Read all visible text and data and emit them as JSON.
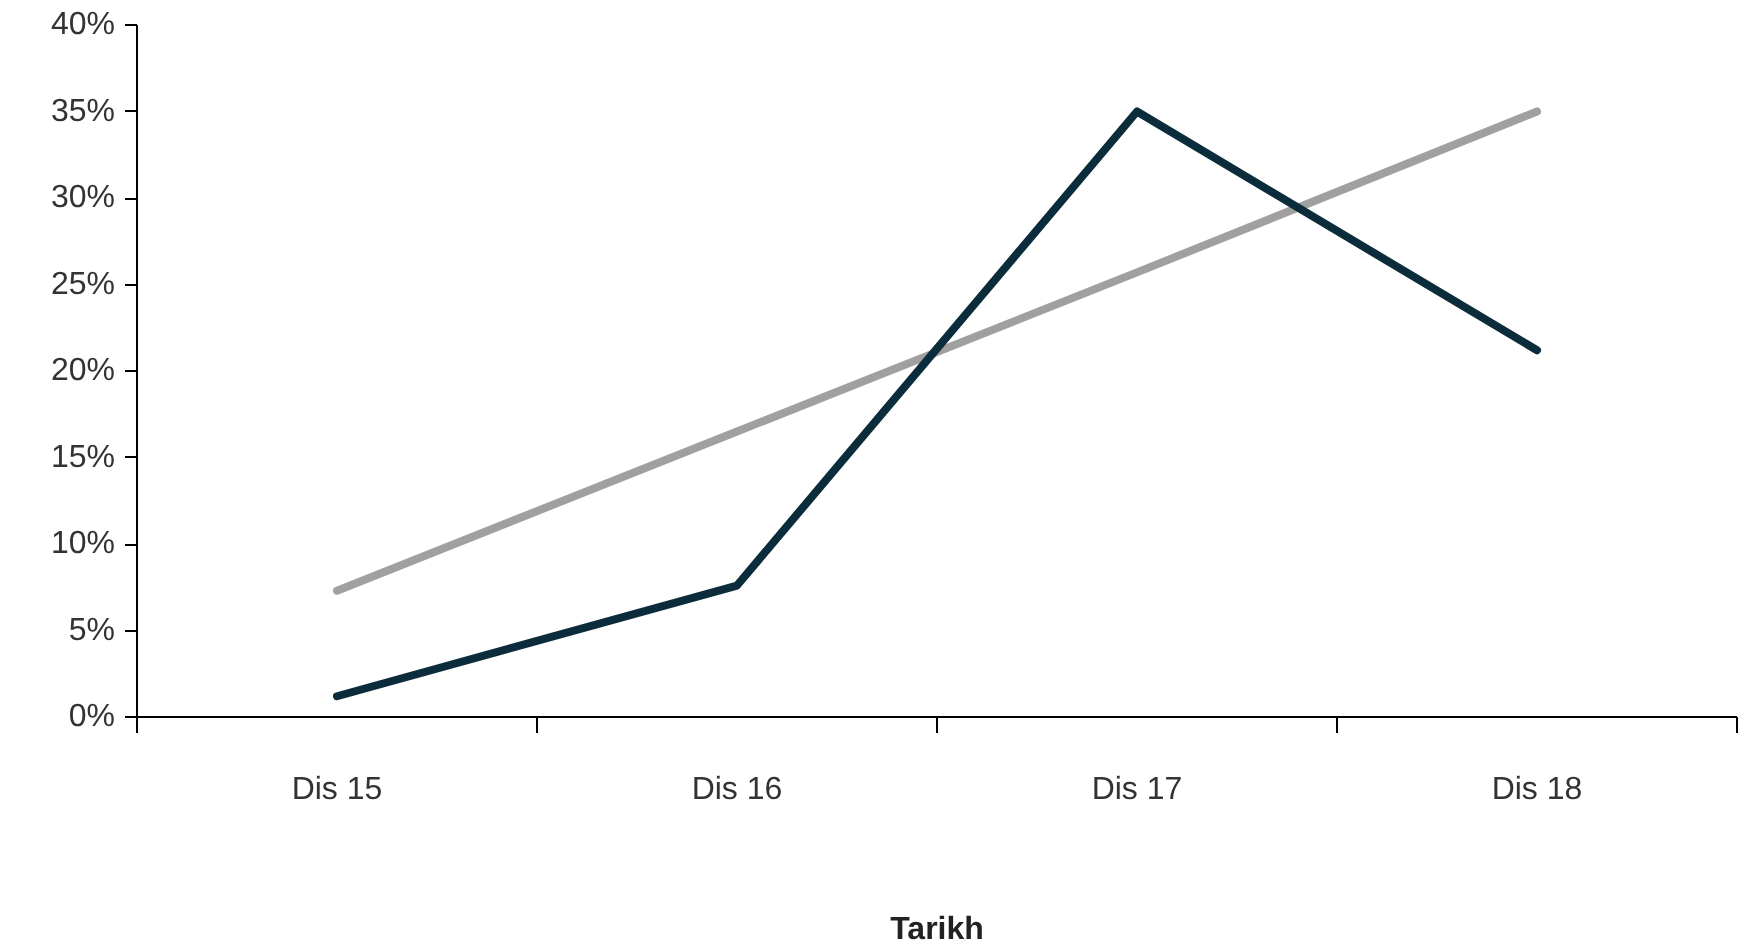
{
  "chart_data": {
    "type": "line",
    "xlabel": "Tarikh",
    "categories": [
      "Dis 15",
      "Dis 16",
      "Dis 17",
      "Dis 18"
    ],
    "series": [
      {
        "color": "#a0a0a0",
        "values": [
          7.3,
          16.5,
          25.7,
          35
        ]
      },
      {
        "color": "#0b2c3b",
        "values": [
          1.2,
          7.6,
          35,
          21.2
        ]
      }
    ],
    "ylim": [
      0,
      40
    ],
    "yticks": [
      {
        "value": 0,
        "label": "0%"
      },
      {
        "value": 5,
        "label": "5%"
      },
      {
        "value": 10,
        "label": "10%"
      },
      {
        "value": 15,
        "label": "15%"
      },
      {
        "value": 20,
        "label": "20%"
      },
      {
        "value": 25,
        "label": "25%"
      },
      {
        "value": 30,
        "label": "30%"
      },
      {
        "value": 35,
        "label": "35%"
      },
      {
        "value": 40,
        "label": "40%"
      }
    ]
  }
}
